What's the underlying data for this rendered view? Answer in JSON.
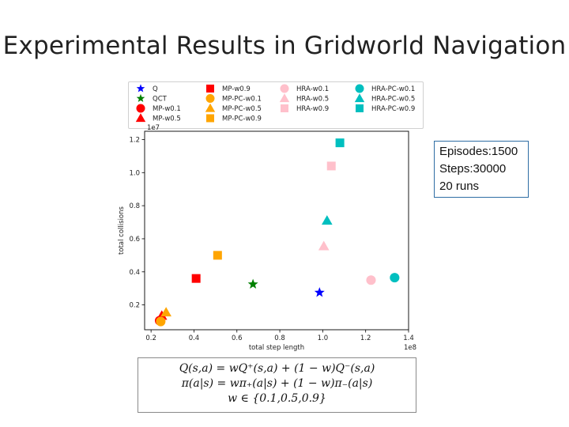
{
  "slide": {
    "title": "Experimental Results in Gridworld Navigation"
  },
  "info_box": {
    "lines": [
      "Episodes:1500",
      "Steps:30000",
      "20 runs"
    ]
  },
  "formula": {
    "lines": [
      "Q(s,a) = wQ⁺(s,a) + (1 − w)Q⁻(s,a)",
      "π(a|s) = wπ₊(a|s) + (1 − w)π₋(a|s)",
      "w ∈ {0.1,0.5,0.9}"
    ]
  },
  "chart_data": {
    "type": "scatter",
    "title": "",
    "xlabel": "total step length",
    "ylabel": "total collisions",
    "x_scale_note": "1e8",
    "y_scale_note": "1e7",
    "xlim": [
      0.17,
      1.4
    ],
    "ylim": [
      0.05,
      1.25
    ],
    "xticks": [
      0.2,
      0.4,
      0.6,
      0.8,
      1.0,
      1.2,
      1.4
    ],
    "xtick_labels": [
      "0.2",
      "0.4",
      "0.6",
      "0.8",
      "1.0",
      "1.2",
      "1.4"
    ],
    "yticks": [
      0.2,
      0.4,
      0.6,
      0.8,
      1.0,
      1.2
    ],
    "ytick_labels": [
      "0.2",
      "0.4",
      "0.6",
      "0.8",
      "1.0",
      "1.2"
    ],
    "grid": false,
    "legend_position": "top",
    "colors": {
      "blue": "#0000ff",
      "green": "#008000",
      "red": "#ff0000",
      "orange": "#ffa500",
      "pink": "#ffc0cb",
      "cyan": "#00bfbf"
    },
    "series": [
      {
        "name": "Q",
        "marker": "star",
        "color": "#0000ff",
        "x": 0.985,
        "y": 0.275
      },
      {
        "name": "QCT",
        "marker": "star",
        "color": "#008000",
        "x": 0.675,
        "y": 0.325
      },
      {
        "name": "MP-w0.1",
        "marker": "circle",
        "color": "#ff0000",
        "x": 0.24,
        "y": 0.105
      },
      {
        "name": "MP-w0.5",
        "marker": "triangle",
        "color": "#ff0000",
        "x": 0.25,
        "y": 0.135
      },
      {
        "name": "MP-w0.9",
        "marker": "square",
        "color": "#ff0000",
        "x": 0.41,
        "y": 0.36
      },
      {
        "name": "MP-PC-w0.1",
        "marker": "circle",
        "color": "#ffa500",
        "x": 0.245,
        "y": 0.1
      },
      {
        "name": "MP-PC-w0.5",
        "marker": "triangle",
        "color": "#ffa500",
        "x": 0.27,
        "y": 0.155
      },
      {
        "name": "MP-PC-w0.9",
        "marker": "square",
        "color": "#ffa500",
        "x": 0.51,
        "y": 0.5
      },
      {
        "name": "HRA-w0.1",
        "marker": "circle",
        "color": "#ffc0cb",
        "x": 1.225,
        "y": 0.35
      },
      {
        "name": "HRA-w0.5",
        "marker": "triangle",
        "color": "#ffc0cb",
        "x": 1.005,
        "y": 0.555
      },
      {
        "name": "HRA-w0.9",
        "marker": "square",
        "color": "#ffc0cb",
        "x": 1.04,
        "y": 1.04
      },
      {
        "name": "HRA-PC-w0.1",
        "marker": "circle",
        "color": "#00bfbf",
        "x": 1.335,
        "y": 0.365
      },
      {
        "name": "HRA-PC-w0.5",
        "marker": "triangle",
        "color": "#00bfbf",
        "x": 1.02,
        "y": 0.71
      },
      {
        "name": "HRA-PC-w0.9",
        "marker": "square",
        "color": "#00bfbf",
        "x": 1.08,
        "y": 1.18
      }
    ]
  }
}
